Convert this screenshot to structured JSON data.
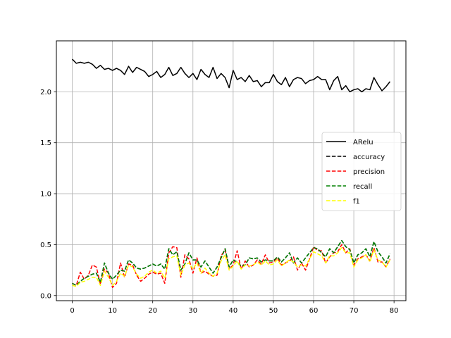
{
  "chart_data": {
    "type": "line",
    "xlim": [
      -3.95,
      82.95
    ],
    "ylim": [
      -0.05,
      2.5
    ],
    "xticks": [
      0,
      10,
      20,
      30,
      40,
      50,
      60,
      70,
      80
    ],
    "yticks": [
      0.0,
      0.5,
      1.0,
      1.5,
      2.0
    ],
    "xtick_labels": [
      "0",
      "10",
      "20",
      "30",
      "40",
      "50",
      "60",
      "70",
      "80"
    ],
    "ytick_labels": [
      "0.0",
      "0.5",
      "1.0",
      "1.5",
      "2.0"
    ],
    "grid": true,
    "legend_position": "center-right",
    "x": [
      0,
      1,
      2,
      3,
      4,
      5,
      6,
      7,
      8,
      9,
      10,
      11,
      12,
      13,
      14,
      15,
      16,
      17,
      18,
      19,
      20,
      21,
      22,
      23,
      24,
      25,
      26,
      27,
      28,
      29,
      30,
      31,
      32,
      33,
      34,
      35,
      36,
      37,
      38,
      39,
      40,
      41,
      42,
      43,
      44,
      45,
      46,
      47,
      48,
      49,
      50,
      51,
      52,
      53,
      54,
      55,
      56,
      57,
      58,
      59,
      60,
      61,
      62,
      63,
      64,
      65,
      66,
      67,
      68,
      69,
      70,
      71,
      72,
      73,
      74,
      75,
      76,
      77,
      78,
      79
    ],
    "series": [
      {
        "name": "ARelu",
        "color": "#000000",
        "dash": "solid",
        "values": [
          2.32,
          2.28,
          2.29,
          2.28,
          2.29,
          2.27,
          2.23,
          2.26,
          2.22,
          2.23,
          2.21,
          2.23,
          2.21,
          2.17,
          2.25,
          2.19,
          2.24,
          2.22,
          2.2,
          2.15,
          2.17,
          2.2,
          2.14,
          2.17,
          2.24,
          2.16,
          2.18,
          2.24,
          2.18,
          2.14,
          2.18,
          2.12,
          2.22,
          2.17,
          2.14,
          2.24,
          2.13,
          2.18,
          2.14,
          2.04,
          2.21,
          2.12,
          2.14,
          2.1,
          2.16,
          2.1,
          2.11,
          2.05,
          2.09,
          2.09,
          2.17,
          2.1,
          2.07,
          2.14,
          2.05,
          2.12,
          2.14,
          2.13,
          2.08,
          2.11,
          2.12,
          2.15,
          2.12,
          2.12,
          2.02,
          2.11,
          2.15,
          2.02,
          2.06,
          2.0,
          2.02,
          2.03,
          2.0,
          2.03,
          2.02,
          2.14,
          2.07,
          2.01,
          2.05,
          2.1
        ]
      },
      {
        "name": "accuracy",
        "color": "#000000",
        "dash": "dashed",
        "values": [
          0.12,
          0.1,
          0.14,
          0.17,
          0.19,
          0.21,
          0.22,
          0.13,
          0.32,
          0.22,
          0.16,
          0.2,
          0.25,
          0.24,
          0.35,
          0.32,
          0.27,
          0.26,
          0.27,
          0.29,
          0.31,
          0.29,
          0.31,
          0.26,
          0.46,
          0.4,
          0.43,
          0.25,
          0.31,
          0.42,
          0.35,
          0.35,
          0.28,
          0.34,
          0.28,
          0.22,
          0.28,
          0.37,
          0.46,
          0.28,
          0.35,
          0.33,
          0.29,
          0.3,
          0.37,
          0.36,
          0.37,
          0.33,
          0.35,
          0.34,
          0.34,
          0.38,
          0.33,
          0.37,
          0.42,
          0.32,
          0.37,
          0.32,
          0.37,
          0.42,
          0.47,
          0.46,
          0.42,
          0.38,
          0.46,
          0.42,
          0.48,
          0.54,
          0.48,
          0.45,
          0.32,
          0.4,
          0.42,
          0.46,
          0.38,
          0.53,
          0.43,
          0.38,
          0.32,
          0.41
        ]
      },
      {
        "name": "precision",
        "color": "#ff0000",
        "dash": "dashed",
        "values": [
          0.12,
          0.1,
          0.23,
          0.16,
          0.2,
          0.3,
          0.28,
          0.11,
          0.26,
          0.22,
          0.08,
          0.12,
          0.32,
          0.18,
          0.31,
          0.3,
          0.2,
          0.14,
          0.17,
          0.21,
          0.23,
          0.21,
          0.22,
          0.12,
          0.42,
          0.48,
          0.47,
          0.18,
          0.4,
          0.36,
          0.22,
          0.37,
          0.22,
          0.24,
          0.21,
          0.19,
          0.2,
          0.39,
          0.45,
          0.26,
          0.3,
          0.44,
          0.26,
          0.34,
          0.28,
          0.3,
          0.35,
          0.31,
          0.4,
          0.32,
          0.33,
          0.37,
          0.3,
          0.32,
          0.34,
          0.38,
          0.25,
          0.32,
          0.25,
          0.36,
          0.48,
          0.44,
          0.44,
          0.32,
          0.38,
          0.42,
          0.43,
          0.5,
          0.42,
          0.46,
          0.3,
          0.36,
          0.38,
          0.4,
          0.34,
          0.47,
          0.33,
          0.33,
          0.28,
          0.36
        ]
      },
      {
        "name": "recall",
        "color": "#008000",
        "dash": "dashed",
        "values": [
          0.12,
          0.1,
          0.14,
          0.17,
          0.19,
          0.21,
          0.22,
          0.13,
          0.32,
          0.22,
          0.16,
          0.2,
          0.25,
          0.24,
          0.35,
          0.32,
          0.27,
          0.26,
          0.27,
          0.29,
          0.31,
          0.29,
          0.31,
          0.26,
          0.46,
          0.4,
          0.43,
          0.25,
          0.31,
          0.42,
          0.35,
          0.35,
          0.28,
          0.34,
          0.28,
          0.22,
          0.28,
          0.37,
          0.46,
          0.28,
          0.35,
          0.33,
          0.29,
          0.3,
          0.37,
          0.36,
          0.37,
          0.33,
          0.35,
          0.34,
          0.34,
          0.38,
          0.33,
          0.37,
          0.42,
          0.32,
          0.37,
          0.32,
          0.37,
          0.42,
          0.47,
          0.46,
          0.42,
          0.38,
          0.46,
          0.42,
          0.48,
          0.54,
          0.48,
          0.45,
          0.32,
          0.4,
          0.42,
          0.46,
          0.38,
          0.53,
          0.43,
          0.38,
          0.32,
          0.41
        ]
      },
      {
        "name": "f1",
        "color": "#ffff00",
        "dash": "dashed",
        "values": [
          0.1,
          0.09,
          0.13,
          0.14,
          0.16,
          0.18,
          0.18,
          0.1,
          0.24,
          0.18,
          0.1,
          0.14,
          0.22,
          0.19,
          0.3,
          0.28,
          0.21,
          0.17,
          0.19,
          0.23,
          0.25,
          0.22,
          0.24,
          0.17,
          0.36,
          0.38,
          0.39,
          0.2,
          0.3,
          0.32,
          0.26,
          0.32,
          0.22,
          0.27,
          0.22,
          0.19,
          0.22,
          0.34,
          0.4,
          0.25,
          0.29,
          0.34,
          0.26,
          0.3,
          0.29,
          0.3,
          0.33,
          0.3,
          0.34,
          0.3,
          0.31,
          0.35,
          0.29,
          0.32,
          0.35,
          0.33,
          0.28,
          0.3,
          0.29,
          0.36,
          0.43,
          0.41,
          0.39,
          0.32,
          0.39,
          0.39,
          0.42,
          0.47,
          0.42,
          0.42,
          0.28,
          0.35,
          0.37,
          0.4,
          0.33,
          0.45,
          0.35,
          0.33,
          0.28,
          0.35
        ]
      }
    ]
  }
}
